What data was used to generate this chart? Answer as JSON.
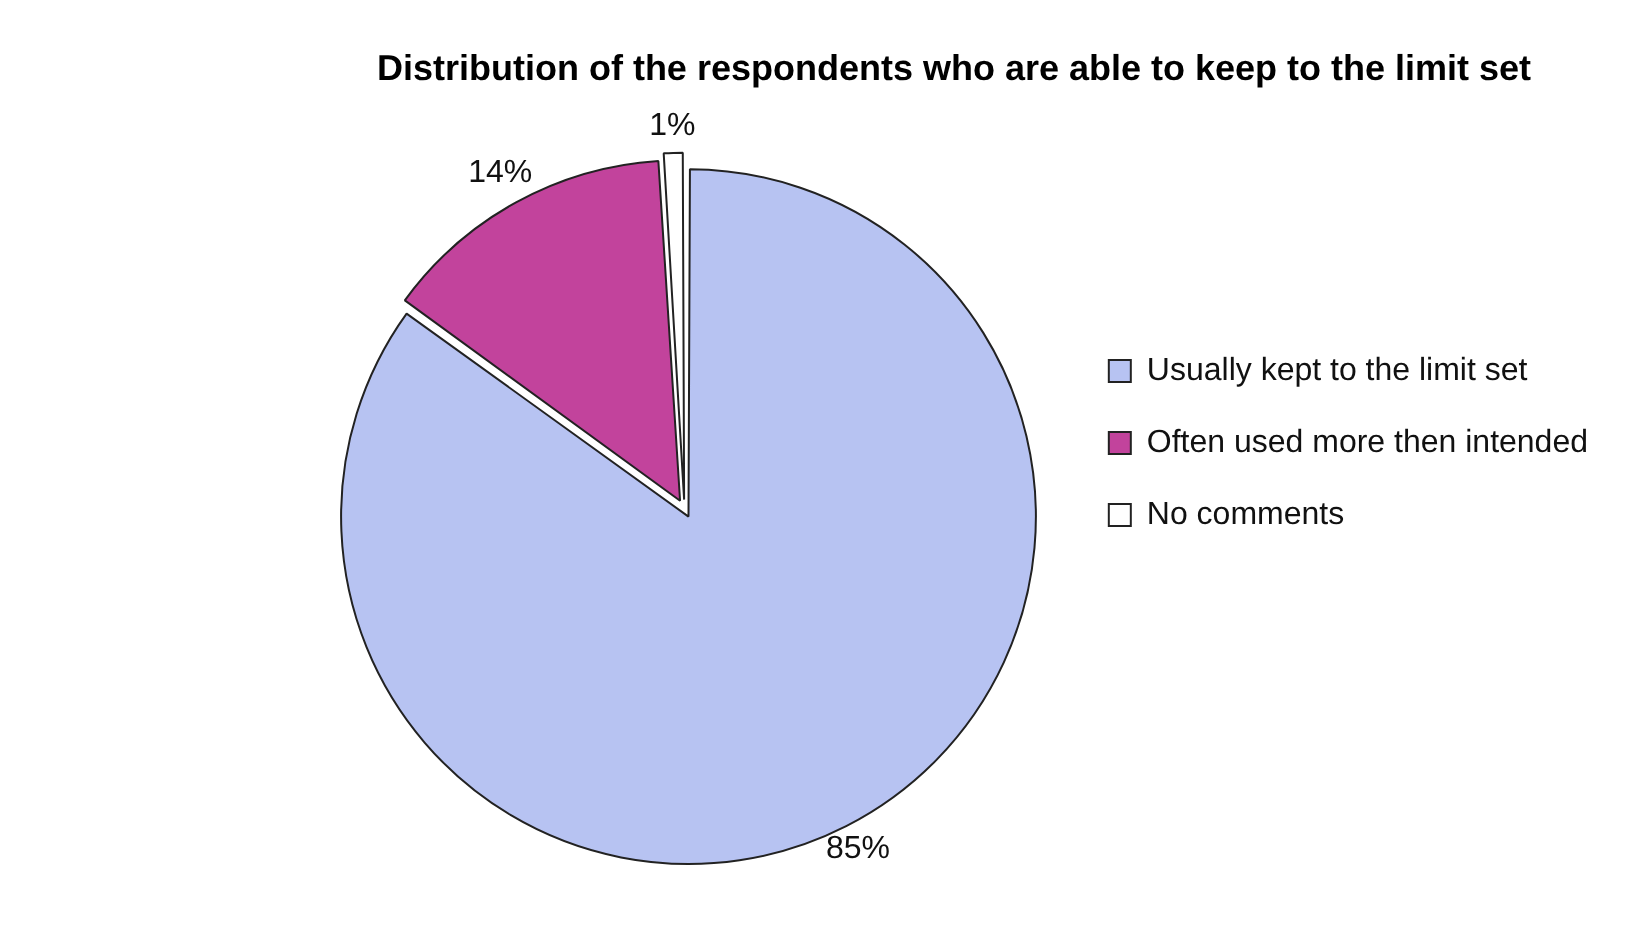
{
  "chart_data": {
    "type": "pie",
    "title": "Distribution of the respondents who are able to keep to the limit set",
    "categories": [
      "Usually kept to the limit set",
      "Often used more then intended",
      "No comments"
    ],
    "values": [
      85,
      14,
      1
    ],
    "value_labels": [
      "85%",
      "14%",
      "1%"
    ],
    "colors": [
      "#b7c3f2",
      "#c2439c",
      "#ffffff"
    ],
    "legend": "right"
  }
}
